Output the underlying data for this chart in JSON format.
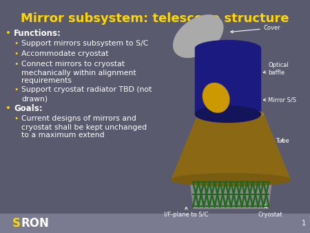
{
  "title": "Mirror subsystem: telescope structure",
  "title_color": "#FFD700",
  "title_fontsize": 13,
  "bg_color": "#5a5a6e",
  "text_color": "#ffffff",
  "bullet_color": "#FFD700",
  "bottom_bar_color": "#7a7a90",
  "slide_number": "1",
  "logo_s_color": "#FFD700",
  "logo_ron_color": "#ffffff",
  "content": [
    {
      "level": 0,
      "text": "Functions:"
    },
    {
      "level": 1,
      "text": "Support mirrors subsystem to S/C"
    },
    {
      "level": 1,
      "text": "Accommodate cryostat"
    },
    {
      "level": 1,
      "text": "Connect mirrors to cryostat\nmechanically within alignment\nrequirements"
    },
    {
      "level": 1,
      "text": "Support cryostat radiator TBD (not\ndrawn)"
    },
    {
      "level": 0,
      "text": "Goals:"
    },
    {
      "level": 1,
      "text": "Current designs of mirrors and\ncryostat shall be kept unchanged\nto a maximum extend"
    }
  ],
  "font_size_l0": 8.5,
  "font_size_l1": 7.8,
  "cover_color": "#aaaaaa",
  "baffle_color": "#1a1a80",
  "mirror_color": "#cc9900",
  "tube_color": "#8B6914",
  "tube_dark": "#7a5c10",
  "strut_color": "#226622",
  "cryo_color": "#888888",
  "ann_color": "#ffffff",
  "ann_fs": 6.0
}
